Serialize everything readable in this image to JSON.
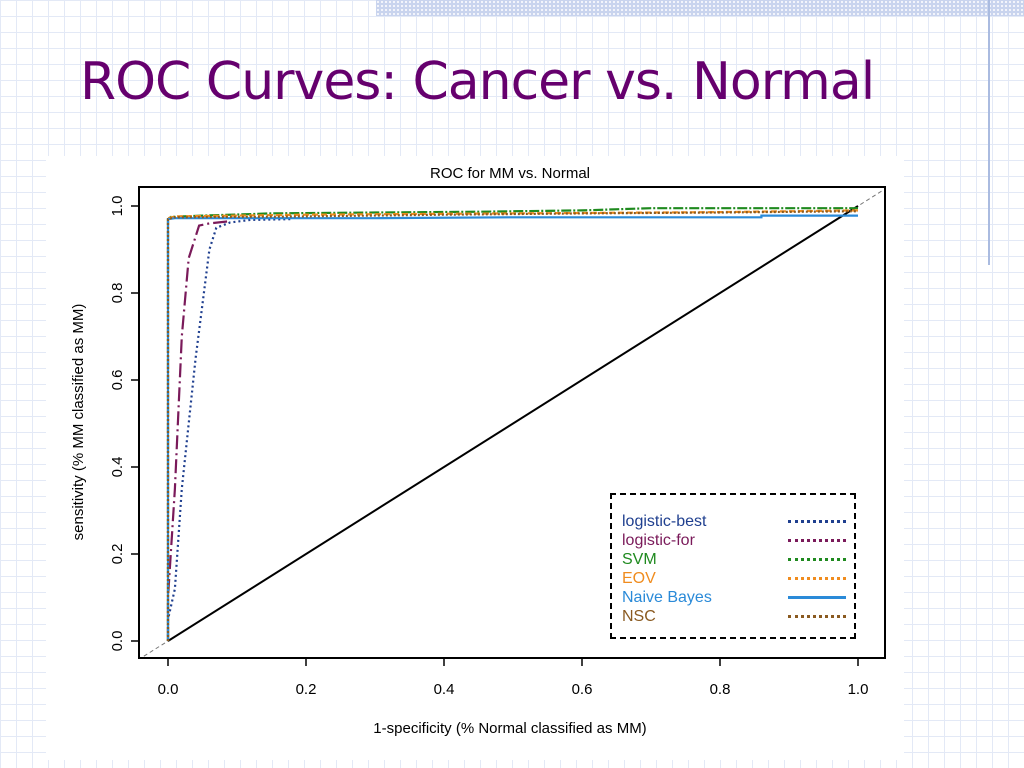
{
  "slide": {
    "title": "ROC Curves: Cancer vs. Normal"
  },
  "chart_data": {
    "type": "line",
    "title": "ROC for MM vs. Normal",
    "xlabel": "1-specificity (% Normal classified as MM)",
    "ylabel": "sensitivity (% MM classified as MM)",
    "xlim": [
      0,
      1
    ],
    "ylim": [
      0,
      1
    ],
    "x_ticks": [
      0.0,
      0.2,
      0.4,
      0.6,
      0.8,
      1.0
    ],
    "y_ticks": [
      0.0,
      0.2,
      0.4,
      0.6,
      0.8,
      1.0
    ],
    "tick_labels": [
      "0.0",
      "0.2",
      "0.4",
      "0.6",
      "0.8",
      "1.0"
    ],
    "grid": false,
    "legend_position": "bottom-right",
    "reference_line": {
      "x": [
        0,
        1
      ],
      "y": [
        0,
        1
      ],
      "color": "#000000"
    },
    "series": [
      {
        "name": "logistic-best",
        "color": "#1f3f8f",
        "dash": "2,3",
        "x": [
          0.0,
          0.0,
          0.01,
          0.02,
          0.04,
          0.06,
          0.07,
          0.09,
          0.12,
          0.18
        ],
        "y": [
          0.0,
          0.05,
          0.12,
          0.35,
          0.65,
          0.9,
          0.95,
          0.962,
          0.968,
          0.97
        ]
      },
      {
        "name": "logistic-for",
        "color": "#7a1a5a",
        "dash": "14,4,2,4",
        "x": [
          0.0,
          0.0,
          0.01,
          0.02,
          0.03,
          0.045,
          0.06,
          0.09
        ],
        "y": [
          0.0,
          0.1,
          0.35,
          0.7,
          0.88,
          0.955,
          0.96,
          0.965
        ]
      },
      {
        "name": "SVM",
        "color": "#1f8a1f",
        "dash": "10,2,2,2",
        "x": [
          0.0,
          0.0,
          0.004,
          0.05,
          0.15,
          0.3,
          0.45,
          0.6,
          0.7,
          0.8,
          0.9,
          1.0
        ],
        "y": [
          0.0,
          0.97,
          0.975,
          0.978,
          0.983,
          0.985,
          0.987,
          0.99,
          0.995,
          0.995,
          0.995,
          0.995
        ]
      },
      {
        "name": "EOV",
        "color": "#f08c1e",
        "dash": "6,3",
        "x": [
          0.0,
          0.0,
          0.01,
          0.1,
          0.2,
          0.4,
          0.6,
          0.8,
          1.0
        ],
        "y": [
          0.0,
          0.972,
          0.976,
          0.978,
          0.98,
          0.982,
          0.984,
          0.986,
          0.99
        ]
      },
      {
        "name": "Naive Bayes",
        "color": "#2a8ad8",
        "dash": "",
        "x": [
          0.0,
          0.0,
          0.01,
          0.3,
          0.5,
          0.7,
          0.86,
          0.86,
          1.0
        ],
        "y": [
          0.0,
          0.97,
          0.972,
          0.972,
          0.974,
          0.974,
          0.974,
          0.978,
          0.978
        ]
      },
      {
        "name": "NSC",
        "color": "#8a5a20",
        "dash": "2,2",
        "x": [
          0.0,
          0.0,
          0.01,
          0.2,
          0.4,
          0.6,
          0.8,
          1.0
        ],
        "y": [
          0.0,
          0.97,
          0.974,
          0.976,
          0.98,
          0.983,
          0.985,
          0.988
        ]
      }
    ]
  }
}
